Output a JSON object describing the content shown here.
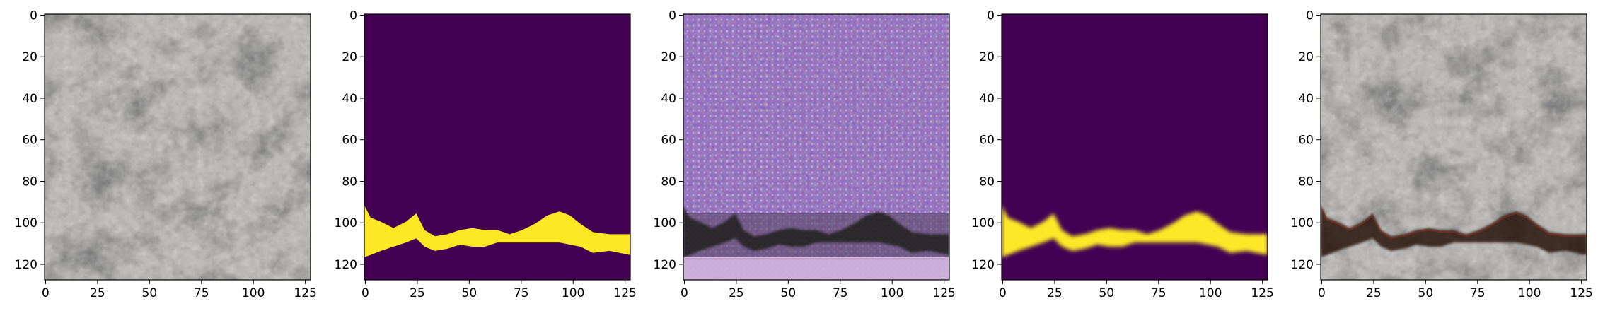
{
  "panels": [
    {
      "kind": "concrete-texture"
    },
    {
      "kind": "crack-mask"
    },
    {
      "kind": "generated-purple-texture"
    },
    {
      "kind": "blurred-crack-mask"
    },
    {
      "kind": "crack-overlay"
    }
  ],
  "x_ticks": [
    "0",
    "25",
    "50",
    "75",
    "100",
    "125"
  ],
  "y_ticks": [
    "0",
    "20",
    "40",
    "60",
    "80",
    "100",
    "120"
  ],
  "colors": {
    "mask_background": "#440154",
    "mask_crack": "#fde725",
    "concrete_base": "#b9b7b3",
    "generated_base": "#8b5fc0",
    "dark_crack": "#2b140e"
  }
}
